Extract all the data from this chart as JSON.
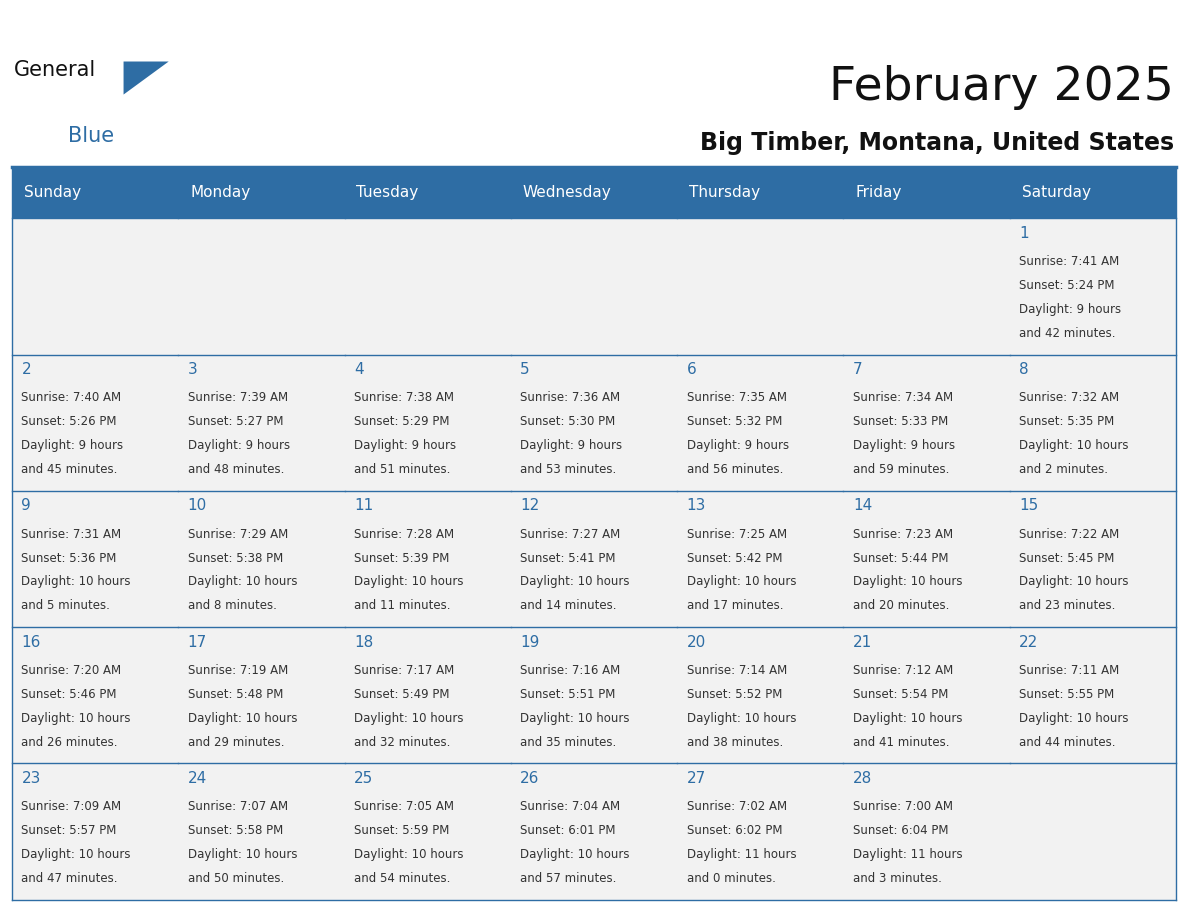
{
  "title": "February 2025",
  "subtitle": "Big Timber, Montana, United States",
  "header_bg": "#2E6DA4",
  "header_text_color": "#FFFFFF",
  "cell_bg": "#F2F2F2",
  "day_number_color": "#2E6DA4",
  "cell_text_color": "#333333",
  "border_color": "#2E6DA4",
  "days_of_week": [
    "Sunday",
    "Monday",
    "Tuesday",
    "Wednesday",
    "Thursday",
    "Friday",
    "Saturday"
  ],
  "calendar": [
    [
      null,
      null,
      null,
      null,
      null,
      null,
      {
        "day": 1,
        "sunrise": "7:41 AM",
        "sunset": "5:24 PM",
        "daylight1": "9 hours",
        "daylight2": "and 42 minutes."
      }
    ],
    [
      {
        "day": 2,
        "sunrise": "7:40 AM",
        "sunset": "5:26 PM",
        "daylight1": "9 hours",
        "daylight2": "and 45 minutes."
      },
      {
        "day": 3,
        "sunrise": "7:39 AM",
        "sunset": "5:27 PM",
        "daylight1": "9 hours",
        "daylight2": "and 48 minutes."
      },
      {
        "day": 4,
        "sunrise": "7:38 AM",
        "sunset": "5:29 PM",
        "daylight1": "9 hours",
        "daylight2": "and 51 minutes."
      },
      {
        "day": 5,
        "sunrise": "7:36 AM",
        "sunset": "5:30 PM",
        "daylight1": "9 hours",
        "daylight2": "and 53 minutes."
      },
      {
        "day": 6,
        "sunrise": "7:35 AM",
        "sunset": "5:32 PM",
        "daylight1": "9 hours",
        "daylight2": "and 56 minutes."
      },
      {
        "day": 7,
        "sunrise": "7:34 AM",
        "sunset": "5:33 PM",
        "daylight1": "9 hours",
        "daylight2": "and 59 minutes."
      },
      {
        "day": 8,
        "sunrise": "7:32 AM",
        "sunset": "5:35 PM",
        "daylight1": "10 hours",
        "daylight2": "and 2 minutes."
      }
    ],
    [
      {
        "day": 9,
        "sunrise": "7:31 AM",
        "sunset": "5:36 PM",
        "daylight1": "10 hours",
        "daylight2": "and 5 minutes."
      },
      {
        "day": 10,
        "sunrise": "7:29 AM",
        "sunset": "5:38 PM",
        "daylight1": "10 hours",
        "daylight2": "and 8 minutes."
      },
      {
        "day": 11,
        "sunrise": "7:28 AM",
        "sunset": "5:39 PM",
        "daylight1": "10 hours",
        "daylight2": "and 11 minutes."
      },
      {
        "day": 12,
        "sunrise": "7:27 AM",
        "sunset": "5:41 PM",
        "daylight1": "10 hours",
        "daylight2": "and 14 minutes."
      },
      {
        "day": 13,
        "sunrise": "7:25 AM",
        "sunset": "5:42 PM",
        "daylight1": "10 hours",
        "daylight2": "and 17 minutes."
      },
      {
        "day": 14,
        "sunrise": "7:23 AM",
        "sunset": "5:44 PM",
        "daylight1": "10 hours",
        "daylight2": "and 20 minutes."
      },
      {
        "day": 15,
        "sunrise": "7:22 AM",
        "sunset": "5:45 PM",
        "daylight1": "10 hours",
        "daylight2": "and 23 minutes."
      }
    ],
    [
      {
        "day": 16,
        "sunrise": "7:20 AM",
        "sunset": "5:46 PM",
        "daylight1": "10 hours",
        "daylight2": "and 26 minutes."
      },
      {
        "day": 17,
        "sunrise": "7:19 AM",
        "sunset": "5:48 PM",
        "daylight1": "10 hours",
        "daylight2": "and 29 minutes."
      },
      {
        "day": 18,
        "sunrise": "7:17 AM",
        "sunset": "5:49 PM",
        "daylight1": "10 hours",
        "daylight2": "and 32 minutes."
      },
      {
        "day": 19,
        "sunrise": "7:16 AM",
        "sunset": "5:51 PM",
        "daylight1": "10 hours",
        "daylight2": "and 35 minutes."
      },
      {
        "day": 20,
        "sunrise": "7:14 AM",
        "sunset": "5:52 PM",
        "daylight1": "10 hours",
        "daylight2": "and 38 minutes."
      },
      {
        "day": 21,
        "sunrise": "7:12 AM",
        "sunset": "5:54 PM",
        "daylight1": "10 hours",
        "daylight2": "and 41 minutes."
      },
      {
        "day": 22,
        "sunrise": "7:11 AM",
        "sunset": "5:55 PM",
        "daylight1": "10 hours",
        "daylight2": "and 44 minutes."
      }
    ],
    [
      {
        "day": 23,
        "sunrise": "7:09 AM",
        "sunset": "5:57 PM",
        "daylight1": "10 hours",
        "daylight2": "and 47 minutes."
      },
      {
        "day": 24,
        "sunrise": "7:07 AM",
        "sunset": "5:58 PM",
        "daylight1": "10 hours",
        "daylight2": "and 50 minutes."
      },
      {
        "day": 25,
        "sunrise": "7:05 AM",
        "sunset": "5:59 PM",
        "daylight1": "10 hours",
        "daylight2": "and 54 minutes."
      },
      {
        "day": 26,
        "sunrise": "7:04 AM",
        "sunset": "6:01 PM",
        "daylight1": "10 hours",
        "daylight2": "and 57 minutes."
      },
      {
        "day": 27,
        "sunrise": "7:02 AM",
        "sunset": "6:02 PM",
        "daylight1": "11 hours",
        "daylight2": "and 0 minutes."
      },
      {
        "day": 28,
        "sunrise": "7:00 AM",
        "sunset": "6:04 PM",
        "daylight1": "11 hours",
        "daylight2": "and 3 minutes."
      },
      null
    ]
  ]
}
